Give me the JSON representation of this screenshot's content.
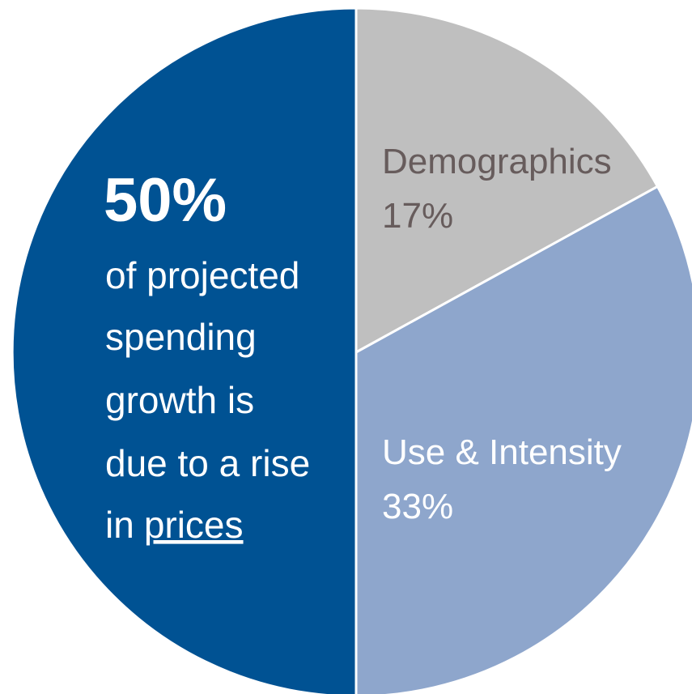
{
  "chart_data": {
    "type": "pie",
    "categories": [
      "Demographics",
      "Use & Intensity",
      null
    ],
    "values": [
      17,
      33,
      50
    ],
    "value_labels": [
      "17%",
      "33%",
      "50%"
    ],
    "colors": [
      "#bfbfbf",
      "#8ea6cc",
      "#005293"
    ],
    "label_colors": [
      "#675c5c",
      "#ffffff",
      "#ffffff"
    ],
    "annotation": {
      "lines": [
        "of projected",
        "spending",
        "growth is",
        "due to a rise",
        "in"
      ],
      "underlined": "prices"
    }
  }
}
